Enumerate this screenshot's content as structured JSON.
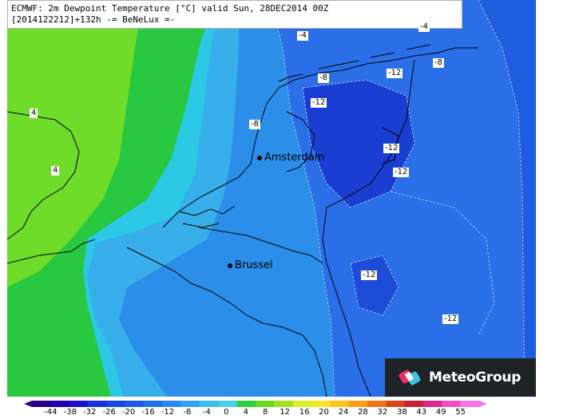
{
  "title": {
    "line1": "ECMWF: 2m Dewpoint Temperature [°C] valid Sun, 28DEC2014 00Z",
    "line2": "[2014122212]+132h -= BeNeLux =-"
  },
  "cities": [
    {
      "id": "amsterdam",
      "name": "Amsterdam"
    },
    {
      "id": "brussel",
      "name": "Brussel"
    }
  ],
  "contour_labels": [
    {
      "id": "a",
      "text": "-4"
    },
    {
      "id": "b",
      "text": "-4"
    },
    {
      "id": "c",
      "text": "-8"
    },
    {
      "id": "d",
      "text": "-8"
    },
    {
      "id": "e",
      "text": "-12"
    },
    {
      "id": "f",
      "text": "-12"
    },
    {
      "id": "g",
      "text": "-8"
    },
    {
      "id": "h",
      "text": "-12"
    },
    {
      "id": "i",
      "text": "-12"
    },
    {
      "id": "j",
      "text": "-12"
    },
    {
      "id": "k",
      "text": "-12"
    },
    {
      "id": "l",
      "text": "4"
    },
    {
      "id": "m",
      "text": "4"
    }
  ],
  "logo": {
    "text": "MeteoGroup",
    "icon": "meteogroup-logo-icon"
  },
  "colorbar": {
    "ticks": [
      "-44",
      "-38",
      "-32",
      "-26",
      "-20",
      "-16",
      "-12",
      "-8",
      "-4",
      "0",
      "4",
      "8",
      "12",
      "16",
      "20",
      "24",
      "28",
      "32",
      "38",
      "43",
      "49",
      "55"
    ],
    "colors": [
      "#2a0080",
      "#2000a8",
      "#1a10c8",
      "#1830d8",
      "#1846e0",
      "#1c5ae6",
      "#2270ea",
      "#2a88ee",
      "#34a2ee",
      "#40bcea",
      "#4ad0e8",
      "#2bd140",
      "#6ad820",
      "#a0e020",
      "#d8ec30",
      "#f6e62a",
      "#fbc41e",
      "#f6a018",
      "#ee7418",
      "#d84818",
      "#c42438",
      "#d82a8c",
      "#ee4ec8",
      "#f478e8"
    ]
  }
}
